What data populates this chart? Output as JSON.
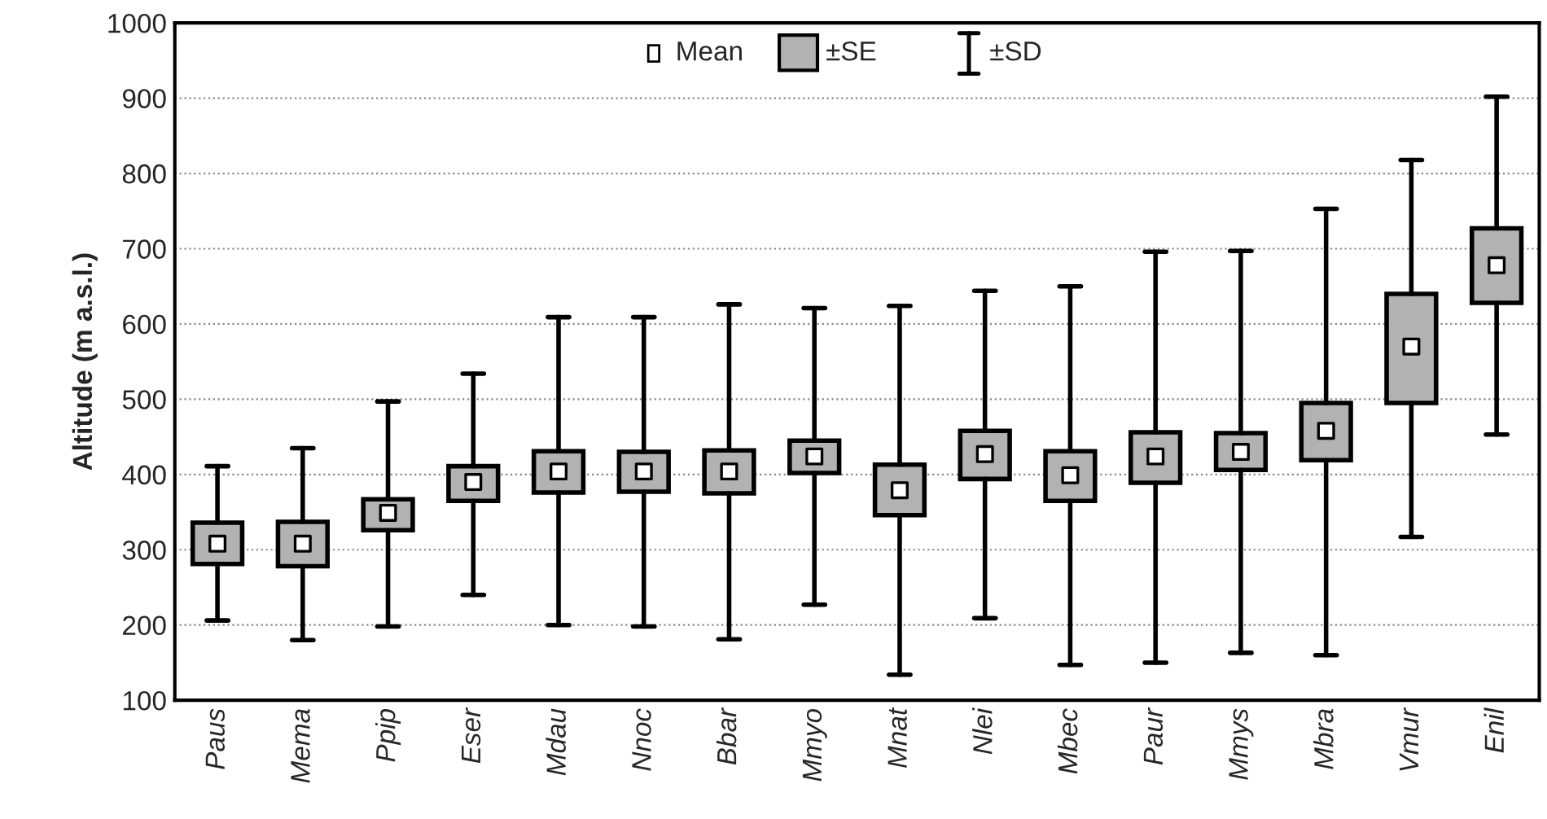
{
  "chart_data": {
    "type": "box",
    "ylabel": "Altitude (m a.s.l.)",
    "categories": [
      "Paus",
      "Mema",
      "Ppip",
      "Eser",
      "Mdau",
      "Nnoc",
      "Bbar",
      "Mmyo",
      "Mnat",
      "Nlei",
      "Mbec",
      "Paur",
      "Mmys",
      "Mbra",
      "Vmur",
      "Enil"
    ],
    "boxes": [
      {
        "low": 206,
        "q1": 281,
        "q3": 336,
        "high": 411,
        "mean": 308
      },
      {
        "low": 180,
        "q1": 278,
        "q3": 337,
        "high": 435,
        "mean": 308
      },
      {
        "low": 198,
        "q1": 326,
        "q3": 367,
        "high": 497,
        "mean": 349
      },
      {
        "low": 240,
        "q1": 365,
        "q3": 411,
        "high": 534,
        "mean": 390
      },
      {
        "low": 200,
        "q1": 376,
        "q3": 431,
        "high": 609,
        "mean": 404
      },
      {
        "low": 198,
        "q1": 377,
        "q3": 430,
        "high": 609,
        "mean": 404
      },
      {
        "low": 181,
        "q1": 375,
        "q3": 432,
        "high": 626,
        "mean": 404
      },
      {
        "low": 227,
        "q1": 402,
        "q3": 445,
        "high": 621,
        "mean": 424
      },
      {
        "low": 134,
        "q1": 346,
        "q3": 413,
        "high": 624,
        "mean": 379
      },
      {
        "low": 209,
        "q1": 394,
        "q3": 458,
        "high": 644,
        "mean": 427
      },
      {
        "low": 147,
        "q1": 365,
        "q3": 431,
        "high": 650,
        "mean": 399
      },
      {
        "low": 150,
        "q1": 389,
        "q3": 456,
        "high": 696,
        "mean": 424
      },
      {
        "low": 163,
        "q1": 406,
        "q3": 455,
        "high": 697,
        "mean": 430
      },
      {
        "low": 160,
        "q1": 419,
        "q3": 495,
        "high": 753,
        "mean": 458
      },
      {
        "low": 317,
        "q1": 495,
        "q3": 640,
        "high": 818,
        "mean": 570
      },
      {
        "low": 453,
        "q1": 628,
        "q3": 727,
        "high": 902,
        "mean": 678
      }
    ],
    "color": "#b2b2b2",
    "ylim": [
      100,
      1000
    ],
    "yticks": [
      100,
      200,
      300,
      400,
      500,
      600,
      700,
      800,
      900,
      1000
    ],
    "grid": "y",
    "annotations": [
      "Mean",
      "±SE",
      "±SD"
    ]
  }
}
